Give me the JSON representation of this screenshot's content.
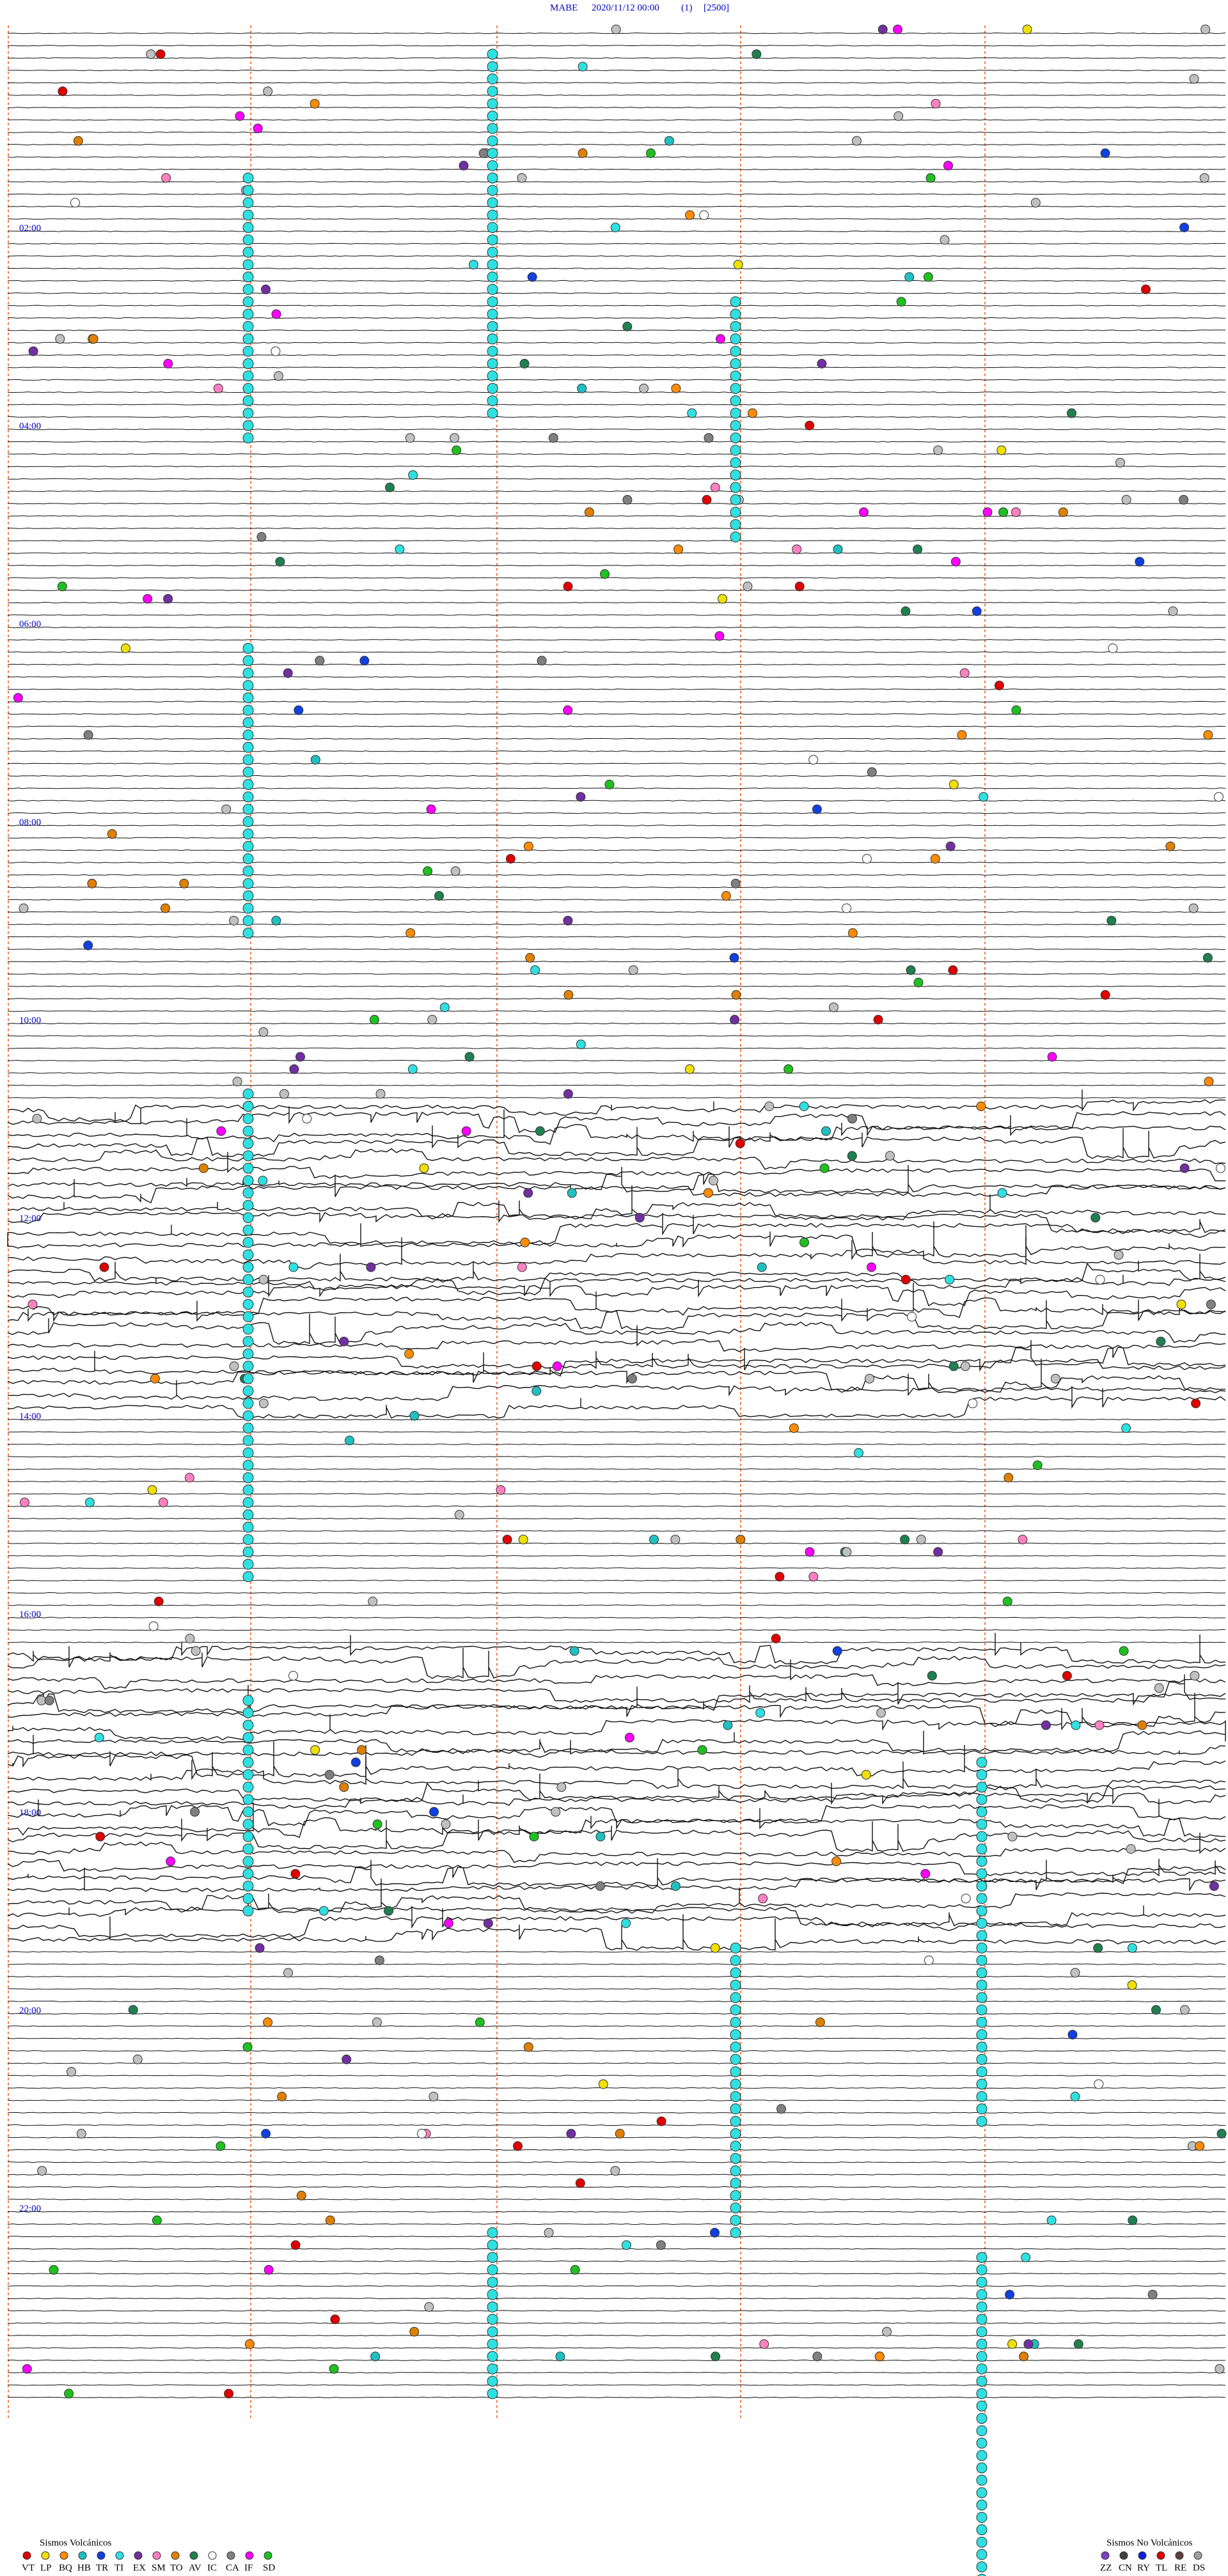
{
  "header": {
    "station": "MABE",
    "datetime": "2020/11/12 00:00",
    "channel": "(1)",
    "scale": "[2500]"
  },
  "hour_labels": [
    "02:00",
    "04:00",
    "06:00",
    "08:00",
    "10:00",
    "12:00",
    "14:00",
    "16:00",
    "18:00",
    "20:00",
    "22:00"
  ],
  "legend": {
    "volcanic_title": "Sismos Volcánicos",
    "volcanic": [
      {
        "code": "VT",
        "color": "#e00000"
      },
      {
        "code": "LP",
        "color": "#f0e000"
      },
      {
        "code": "BQ",
        "color": "#ff8c00"
      },
      {
        "code": "HB",
        "color": "#20c0c0"
      },
      {
        "code": "TR",
        "color": "#1040e0"
      },
      {
        "code": "TI",
        "color": "#30e0e0"
      },
      {
        "code": "EX",
        "color": "#7030a0"
      },
      {
        "code": "SM",
        "color": "#ff80c0"
      },
      {
        "code": "TO",
        "color": "#e08000"
      },
      {
        "code": "AV",
        "color": "#208050"
      },
      {
        "code": "IC",
        "color": "#ffffff"
      },
      {
        "code": "CA",
        "color": "#808080"
      },
      {
        "code": "IF",
        "color": "#ff00ff"
      },
      {
        "code": "SD",
        "color": "#20c020"
      }
    ],
    "nonvolcanic_title": "Sismos No Volcánicos",
    "nonvolcanic": [
      {
        "code": "ZZ",
        "color": "#8040c0"
      },
      {
        "code": "CN",
        "color": "#404040"
      },
      {
        "code": "RY",
        "color": "#1020e0"
      },
      {
        "code": "TL",
        "color": "#e00000"
      },
      {
        "code": "RE",
        "color": "#604040"
      },
      {
        "code": "DS",
        "color": "#a0a0a0"
      }
    ]
  }
}
